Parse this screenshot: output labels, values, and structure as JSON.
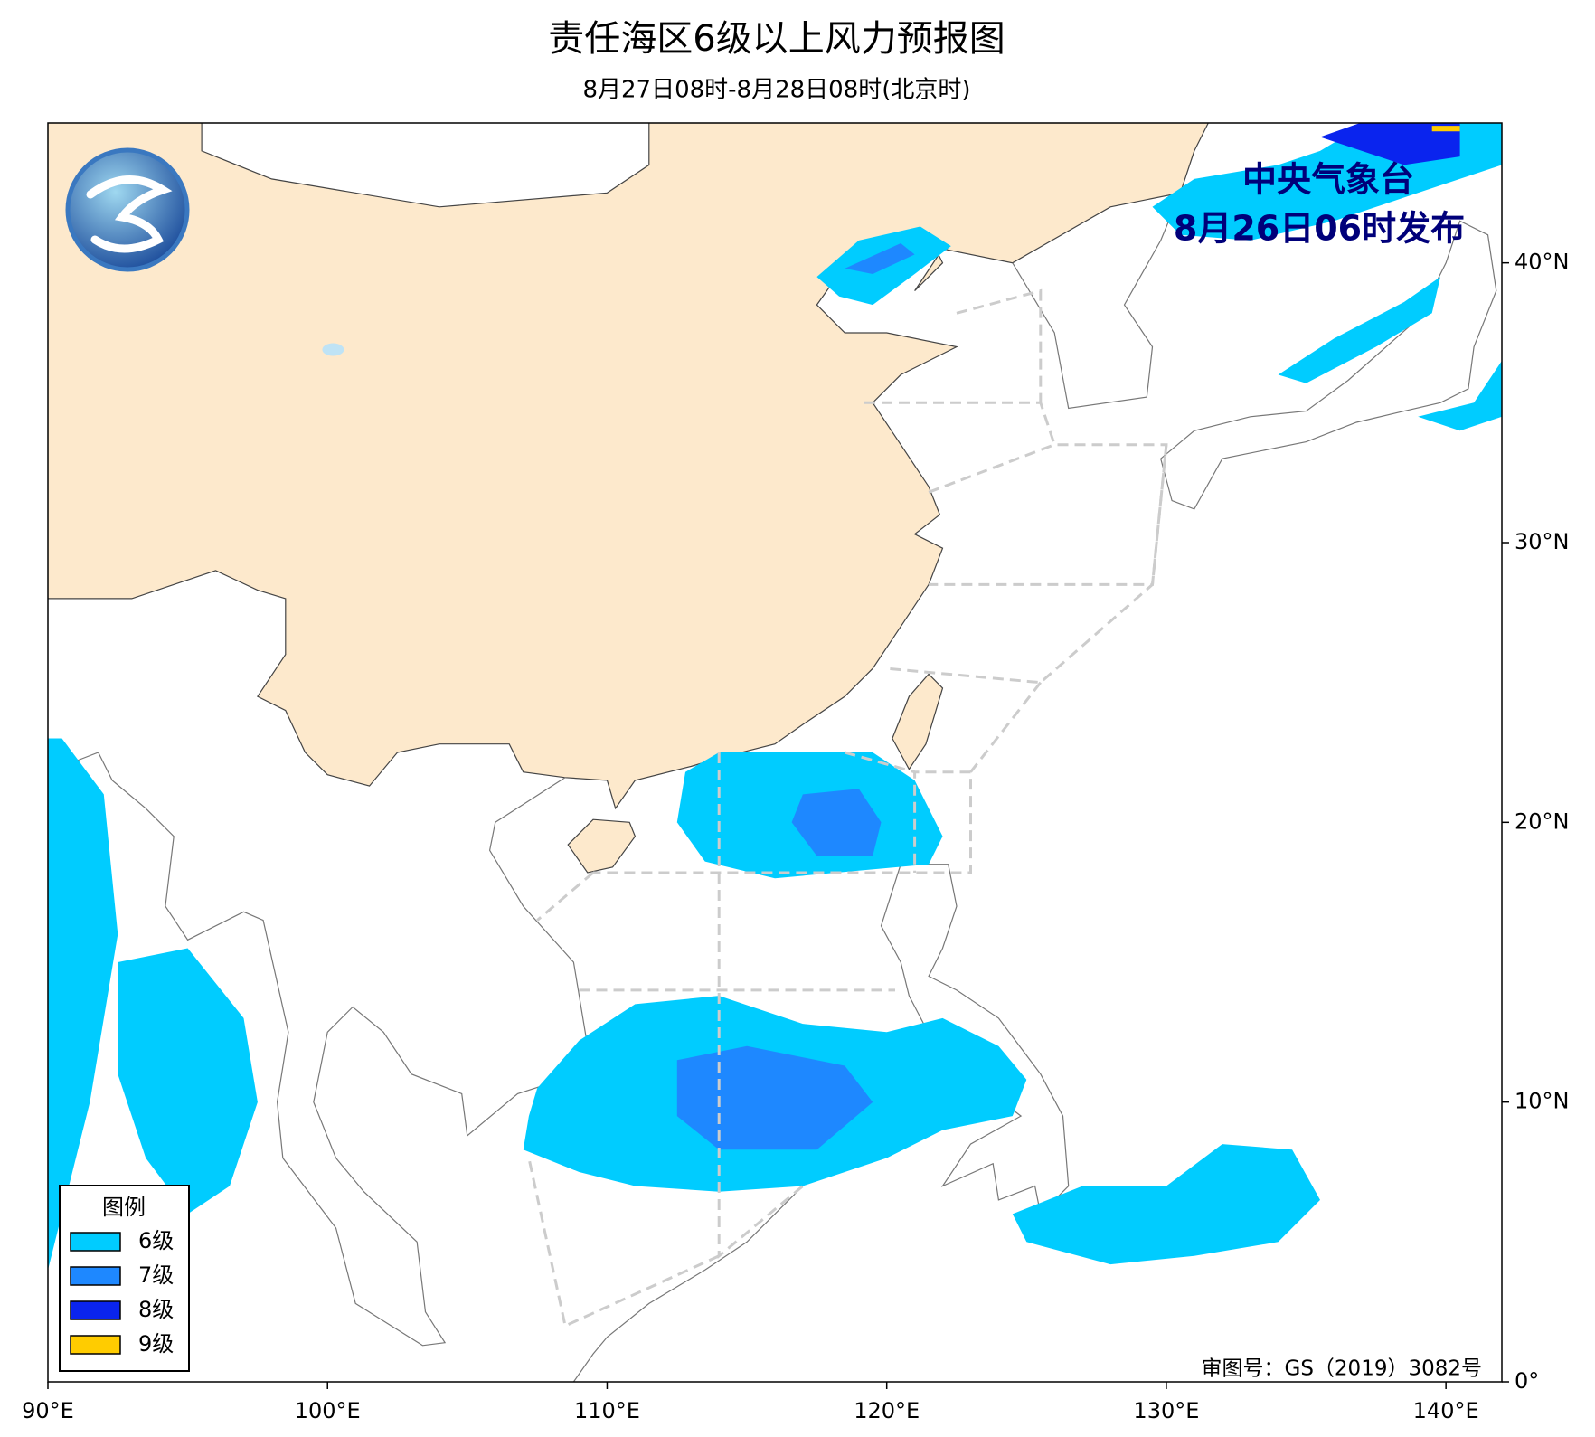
{
  "header": {
    "title": "责任海区6级以上风力预报图",
    "subtitle": "8月27日08时-8月28日08时(北京时)"
  },
  "issuer": {
    "name": "中央气象台",
    "time": "8月26日06时发布"
  },
  "legend": {
    "title": "图例",
    "items": [
      {
        "label": "6级",
        "color": "#00ccff"
      },
      {
        "label": "7级",
        "color": "#1e88ff"
      },
      {
        "label": "8级",
        "color": "#0a24ee"
      },
      {
        "label": "9级",
        "color": "#ffcc00"
      }
    ]
  },
  "map": {
    "lonlim": [
      90,
      142
    ],
    "latlim": [
      0,
      45
    ],
    "lonticks": [
      {
        "value": 90,
        "label": "90°E"
      },
      {
        "value": 100,
        "label": "100°E"
      },
      {
        "value": 110,
        "label": "110°E"
      },
      {
        "value": 120,
        "label": "120°E"
      },
      {
        "value": 130,
        "label": "130°E"
      },
      {
        "value": 140,
        "label": "140°E"
      }
    ],
    "latticks": [
      {
        "value": 0,
        "label": "0°"
      },
      {
        "value": 10,
        "label": "10°N"
      },
      {
        "value": 20,
        "label": "20°N"
      },
      {
        "value": 30,
        "label": "30°N"
      },
      {
        "value": 40,
        "label": "40°N"
      }
    ]
  },
  "approval": "审图号：GS（2019）3082号"
}
